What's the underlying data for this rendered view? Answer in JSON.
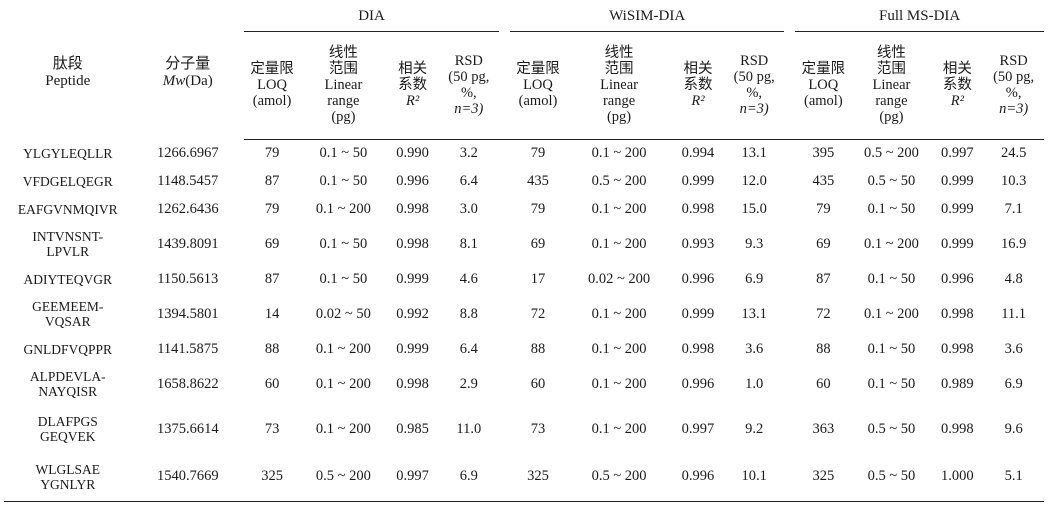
{
  "groups": {
    "dia": "DIA",
    "wisim": "WiSIM-DIA",
    "fullms": "Full MS-DIA"
  },
  "headers": {
    "peptide_cn": "肽段",
    "peptide_en": "Peptide",
    "mw_cn": "分子量",
    "mw_label": "Mw",
    "mw_unit": "(Da)",
    "loq_cn": "定量限",
    "loq_en": "LOQ",
    "loq_unit": "(amol)",
    "range_cn": "线性",
    "range_cn2": "范围",
    "range_en": "Linear",
    "range_en2": "range",
    "range_unit": "(pg)",
    "r2_cn": "相关",
    "r2_cn2": "系数",
    "r2_sym": "R²",
    "rsd_en": "RSD",
    "rsd_line2": "(50 pg,",
    "rsd_line3": "%,",
    "rsd_line4": "n=3)"
  },
  "rows": [
    {
      "peptide": [
        "YLGYLEQLLR"
      ],
      "mw": "1266.6967",
      "dia": [
        "79",
        "0.1 ~ 50",
        "0.990",
        "3.2"
      ],
      "wisim": [
        "79",
        "0.1 ~ 200",
        "0.994",
        "13.1"
      ],
      "full": [
        "395",
        "0.5 ~ 200",
        "0.997",
        "24.5"
      ]
    },
    {
      "peptide": [
        "VFDGELQEGR"
      ],
      "mw": "1148.5457",
      "dia": [
        "87",
        "0.1 ~ 50",
        "0.996",
        "6.4"
      ],
      "wisim": [
        "435",
        "0.5 ~ 200",
        "0.999",
        "12.0"
      ],
      "full": [
        "435",
        "0.5 ~ 50",
        "0.999",
        "10.3"
      ]
    },
    {
      "peptide": [
        "EAFGVNMQIVR"
      ],
      "mw": "1262.6436",
      "dia": [
        "79",
        "0.1 ~ 200",
        "0.998",
        "3.0"
      ],
      "wisim": [
        "79",
        "0.1 ~ 200",
        "0.998",
        "15.0"
      ],
      "full": [
        "79",
        "0.1 ~ 50",
        "0.999",
        "7.1"
      ]
    },
    {
      "peptide": [
        "INTVNSNT-",
        "LPVLR"
      ],
      "mw": "1439.8091",
      "dia": [
        "69",
        "0.1 ~ 50",
        "0.998",
        "8.1"
      ],
      "wisim": [
        "69",
        "0.1 ~ 200",
        "0.993",
        "9.3"
      ],
      "full": [
        "69",
        "0.1 ~ 200",
        "0.999",
        "16.9"
      ]
    },
    {
      "peptide": [
        "ADIYTEQVGR"
      ],
      "mw": "1150.5613",
      "dia": [
        "87",
        "0.1 ~ 50",
        "0.999",
        "4.6"
      ],
      "wisim": [
        "17",
        "0.02 ~ 200",
        "0.996",
        "6.9"
      ],
      "full": [
        "87",
        "0.1 ~ 50",
        "0.996",
        "4.8"
      ]
    },
    {
      "peptide": [
        "GEEMEEM-",
        "VQSAR"
      ],
      "mw": "1394.5801",
      "dia": [
        "14",
        "0.02 ~ 50",
        "0.992",
        "8.8"
      ],
      "wisim": [
        "72",
        "0.1 ~ 200",
        "0.999",
        "13.1"
      ],
      "full": [
        "72",
        "0.1 ~ 200",
        "0.998",
        "11.1"
      ]
    },
    {
      "peptide": [
        "GNLDFVQPPR"
      ],
      "mw": "1141.5875",
      "dia": [
        "88",
        "0.1 ~ 200",
        "0.999",
        "6.4"
      ],
      "wisim": [
        "88",
        "0.1 ~ 200",
        "0.998",
        "3.6"
      ],
      "full": [
        "88",
        "0.1 ~ 50",
        "0.998",
        "3.6"
      ]
    },
    {
      "peptide": [
        "ALPDEVLA-",
        "NAYQISR"
      ],
      "mw": "1658.8622",
      "dia": [
        "60",
        "0.1 ~ 200",
        "0.998",
        "2.9"
      ],
      "wisim": [
        "60",
        "0.1 ~ 200",
        "0.996",
        "1.0"
      ],
      "full": [
        "60",
        "0.1 ~ 50",
        "0.989",
        "6.9"
      ]
    },
    {
      "peptide": [
        "DLAFPGS",
        "GEQVEK"
      ],
      "mw": "1375.6614",
      "dia": [
        "73",
        "0.1 ~ 200",
        "0.985",
        "11.0"
      ],
      "wisim": [
        "73",
        "0.1 ~ 200",
        "0.997",
        "9.2"
      ],
      "full": [
        "363",
        "0.5 ~ 50",
        "0.998",
        "9.6"
      ]
    },
    {
      "peptide": [
        "WLGLSAE",
        "YGNLYR"
      ],
      "mw": "1540.7669",
      "dia": [
        "325",
        "0.5 ~ 200",
        "0.997",
        "6.9"
      ],
      "wisim": [
        "325",
        "0.5 ~ 200",
        "0.996",
        "10.1"
      ],
      "full": [
        "325",
        "0.5 ~ 50",
        "1.000",
        "5.1"
      ]
    }
  ]
}
